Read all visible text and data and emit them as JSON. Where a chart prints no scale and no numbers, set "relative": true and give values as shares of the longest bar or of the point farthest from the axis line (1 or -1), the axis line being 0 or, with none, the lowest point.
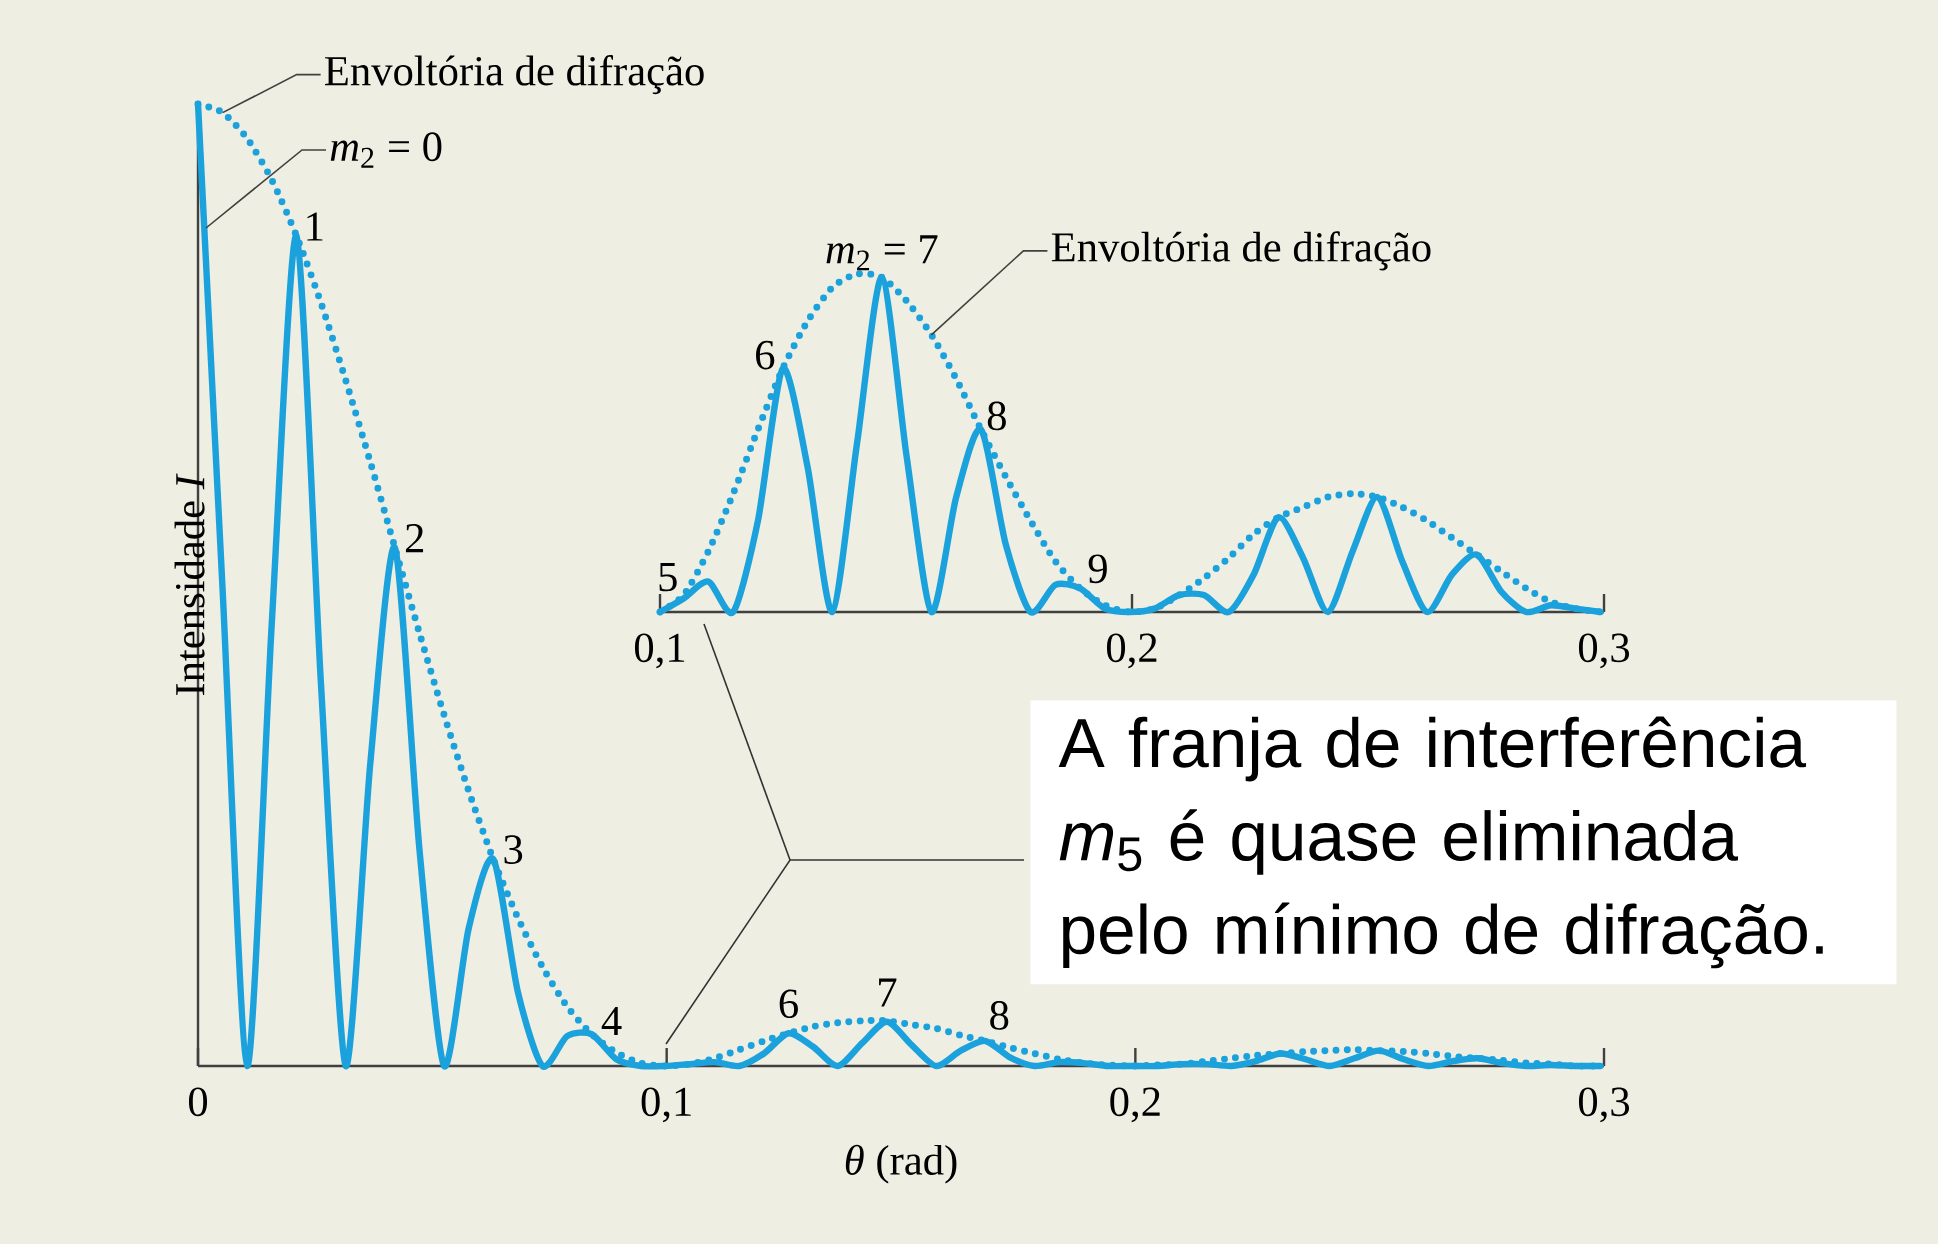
{
  "chart_data": [
    {
      "type": "line",
      "relative": true,
      "xlabel": "*θ* (rad)",
      "ylabel": "Intensidade *I*",
      "xlim": [
        0,
        0.3
      ],
      "xticks": [
        0,
        {
          "value": 0.1,
          "label": "0,1"
        },
        {
          "value": 0.2,
          "label": "0,2"
        },
        {
          "value": 0.3,
          "label": "0,3"
        }
      ],
      "x": [
        0,
        0.00525,
        0.0105,
        0.01575,
        0.021,
        0.02625,
        0.0315,
        0.03675,
        0.042,
        0.04725,
        0.0525,
        0.05775,
        0.063,
        0.06825,
        0.0735,
        0.07875,
        0.084,
        0.08925,
        0.0945,
        0.09975,
        0.105,
        0.11025,
        0.1155,
        0.12075,
        0.126,
        0.13125,
        0.1365,
        0.14175,
        0.147,
        0.15225,
        0.1575,
        0.16275,
        0.168,
        0.17325,
        0.1785,
        0.18375,
        0.189,
        0.19425,
        0.1995,
        0.20475,
        0.21,
        0.21525,
        0.2205,
        0.22575,
        0.231,
        0.23625,
        0.2415,
        0.24675,
        0.252,
        0.25725,
        0.2625,
        0.26775,
        0.273,
        0.27825,
        0.2835,
        0.28875,
        0.294,
        0.29925
      ],
      "series": [
        {
          "color": "#1ba1dc",
          "line_style": "solid",
          "values": [
            1,
            0.495,
            0,
            0.461,
            0.863,
            0.396,
            0,
            0.314,
            0.539,
            0.225,
            0,
            0.143,
            0.215,
            0.077,
            0,
            0.031,
            0.033,
            0.007,
            0,
            0,
            0.002,
            0.004,
            0,
            0.013,
            0.034,
            0.02,
            0,
            0.024,
            0.046,
            0.022,
            0,
            0.016,
            0.026,
            0.009,
            0,
            0.004,
            0.003,
            0,
            0,
            0,
            0.002,
            0.002,
            0,
            0.005,
            0.013,
            0.007,
            0,
            0.008,
            0.016,
            0.007,
            0,
            0.005,
            0.008,
            0.003,
            0,
            0.001,
            0,
            0
          ]
        },
        {
          "color": "#1ba1dc",
          "line_style": "dotted",
          "values": [
            1,
            0.991,
            0.964,
            0.921,
            0.863,
            0.793,
            0.713,
            0.628,
            0.539,
            0.45,
            0.365,
            0.286,
            0.215,
            0.154,
            0.103,
            0.062,
            0.033,
            0.014,
            0.003,
            0,
            0.002,
            0.008,
            0.017,
            0.026,
            0.034,
            0.041,
            0.045,
            0.047,
            0.047,
            0.043,
            0.039,
            0.032,
            0.026,
            0.019,
            0.013,
            0.007,
            0.003,
            0.001,
            0,
            0.001,
            0.002,
            0.005,
            0.008,
            0.011,
            0.013,
            0.015,
            0.016,
            0.017,
            0.016,
            0.015,
            0.013,
            0.01,
            0.008,
            0.006,
            0.003,
            0.002,
            0,
            0
          ]
        }
      ],
      "annotations": [
        {
          "text": "Envoltória de difração",
          "x": 0.00525,
          "y": 0.991
        },
        "*m*$_{2}$ = 0",
        {
          "text": "1",
          "x": 0.021,
          "y": 0.863
        },
        {
          "text": "2",
          "x": 0.042,
          "y": 0.539
        },
        {
          "text": "3",
          "x": 0.063,
          "y": 0.215
        },
        {
          "text": "4",
          "x": 0.084,
          "y": 0.033
        },
        {
          "text": "6",
          "x": 0.126,
          "y": 0.034
        },
        {
          "text": "7",
          "x": 0.147,
          "y": 0.046
        },
        {
          "text": "8",
          "x": 0.168,
          "y": 0.026
        },
        "A franja de interferência *m*$_{5}$ é quase eliminada pelo mínimo de difração."
      ]
    },
    {
      "type": "line",
      "relative": true,
      "xlim": [
        0.1,
        0.3
      ],
      "xticks": [
        {
          "value": 0.1,
          "label": "0,1"
        },
        {
          "value": 0.2,
          "label": "0,2"
        },
        {
          "value": 0.3,
          "label": "0,3"
        }
      ],
      "x": [
        0.1,
        0.105,
        0.11025,
        0.1155,
        0.12075,
        0.126,
        0.13125,
        0.1365,
        0.14175,
        0.147,
        0.15225,
        0.1575,
        0.16275,
        0.168,
        0.17325,
        0.1785,
        0.18375,
        0.189,
        0.19425,
        0.1995,
        0.20475,
        0.21,
        0.21525,
        0.2205,
        0.22575,
        0.231,
        0.23625,
        0.2415,
        0.24675,
        0.252,
        0.25725,
        0.2625,
        0.26775,
        0.273,
        0.27825,
        0.2835,
        0.28875,
        0.294,
        0.29925
      ],
      "series": [
        {
          "color": "#1ba1dc",
          "line_style": "solid",
          "values": [
            0,
            0.04,
            0.09,
            0,
            0.27,
            0.72,
            0.43,
            0,
            0.5,
            0.99,
            0.46,
            0,
            0.34,
            0.54,
            0.2,
            0,
            0.08,
            0.07,
            0.01,
            0,
            0.01,
            0.05,
            0.05,
            0,
            0.11,
            0.28,
            0.16,
            0,
            0.18,
            0.34,
            0.15,
            0,
            0.11,
            0.17,
            0.06,
            0,
            0.02,
            0.01,
            0
          ]
        },
        {
          "color": "#1ba1dc",
          "line_style": "dotted",
          "values": [
            0,
            0.05,
            0.18,
            0.35,
            0.54,
            0.72,
            0.86,
            0.96,
            1,
            0.99,
            0.92,
            0.82,
            0.69,
            0.54,
            0.4,
            0.27,
            0.15,
            0.07,
            0.02,
            0,
            0.01,
            0.05,
            0.1,
            0.16,
            0.23,
            0.28,
            0.31,
            0.34,
            0.35,
            0.34,
            0.31,
            0.27,
            0.22,
            0.17,
            0.12,
            0.07,
            0.03,
            0.01,
            0
          ]
        }
      ],
      "annotations": [
        {
          "text": "*m*$_{2}$ = 7",
          "x": 0.147,
          "y": 0.99
        },
        {
          "text": "5",
          "x": 0.105,
          "y": 0.04
        },
        {
          "text": "6",
          "x": 0.126,
          "y": 0.72
        },
        {
          "text": "8",
          "x": 0.168,
          "y": 0.54
        },
        {
          "text": "9",
          "x": 0.189,
          "y": 0.07
        },
        {
          "text": "Envoltória de difração",
          "x": 0.1575,
          "y": 0.82
        }
      ]
    }
  ]
}
